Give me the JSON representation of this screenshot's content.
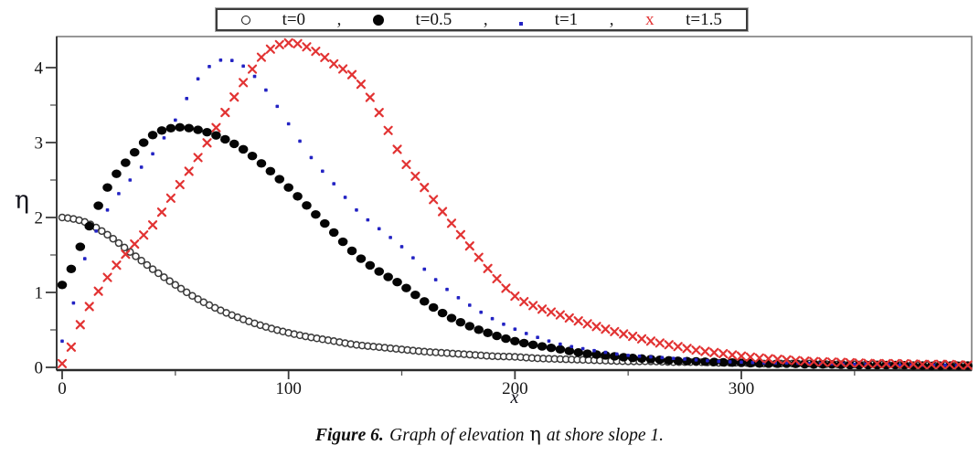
{
  "figure": {
    "caption": {
      "prefix": "Figure 6.",
      "body": "Graph of elevation",
      "eta": "η",
      "suffix": "at shore slope 1."
    }
  },
  "legend": {
    "separator": ",",
    "items": [
      {
        "label": "t=0",
        "marker": "open-circle",
        "glyph": "o",
        "color": "#141414"
      },
      {
        "label": "t=0.5",
        "marker": "filled-circle",
        "glyph": "●",
        "color": "#050505"
      },
      {
        "label": "t=1",
        "marker": "dot",
        "glyph": ".",
        "color": "#2323c3"
      },
      {
        "label": "t=1.5",
        "marker": "x-cross",
        "glyph": "x",
        "color": "#e23333"
      }
    ]
  },
  "axes": {
    "x": {
      "label": "x",
      "major_ticks": [
        0,
        100,
        200,
        300
      ],
      "minor_ticks": [
        50,
        150,
        250,
        350
      ],
      "range": [
        -2.5,
        401.5
      ]
    },
    "y": {
      "label": "η",
      "major_ticks": [
        0,
        1,
        2,
        3,
        4
      ],
      "minor_ticks": [
        0.5,
        1.5,
        2.5,
        3.5
      ],
      "range": [
        -0.04,
        4.42
      ]
    }
  },
  "layout_colors": {
    "background": "#ffffff",
    "frame": "#757575",
    "axis": "#2a2a2a",
    "tick": "#3c3c3c",
    "series_gray": "#3a3a3a",
    "series_black": "#050505",
    "series_blue": "#2323c3",
    "series_red": "#e23333"
  },
  "chart_data": {
    "type": "scatter",
    "title": "",
    "xlabel": "x",
    "ylabel": "η",
    "xlim": [
      0,
      400
    ],
    "ylim": [
      0,
      4.42
    ],
    "grid": false,
    "legend_position": "top-outside",
    "x": [
      0,
      10,
      20,
      30,
      40,
      50,
      60,
      70,
      80,
      90,
      100,
      110,
      120,
      130,
      140,
      150,
      160,
      170,
      180,
      190,
      200,
      210,
      220,
      230,
      240,
      250,
      260,
      270,
      280,
      290,
      300,
      310,
      320,
      330,
      340,
      350,
      360,
      370,
      380,
      390,
      400
    ],
    "series": [
      {
        "name": "t=0",
        "marker": "open-circle",
        "color": "#3a3a3a",
        "fill": "#ffffff",
        "marker_step": 2.5,
        "values": [
          2.0,
          1.94,
          1.77,
          1.54,
          1.31,
          1.1,
          0.91,
          0.76,
          0.64,
          0.54,
          0.46,
          0.4,
          0.35,
          0.3,
          0.27,
          0.24,
          0.21,
          0.19,
          0.17,
          0.15,
          0.14,
          0.12,
          0.11,
          0.1,
          0.09,
          0.08,
          0.08,
          0.07,
          0.07,
          0.06,
          0.06,
          0.05,
          0.05,
          0.05,
          0.04,
          0.04,
          0.04,
          0.03,
          0.03,
          0.03,
          0.03
        ]
      },
      {
        "name": "t=0.5",
        "marker": "filled-circle",
        "color": "#050505",
        "fill": "#050505",
        "marker_step": 4,
        "values": [
          1.1,
          1.75,
          2.4,
          2.8,
          3.1,
          3.2,
          3.17,
          3.07,
          2.91,
          2.67,
          2.4,
          2.1,
          1.8,
          1.5,
          1.28,
          1.1,
          0.88,
          0.69,
          0.55,
          0.44,
          0.35,
          0.29,
          0.24,
          0.19,
          0.16,
          0.13,
          0.11,
          0.09,
          0.08,
          0.07,
          0.06,
          0.05,
          0.05,
          0.04,
          0.04,
          0.03,
          0.03,
          0.03,
          0.02,
          0.02,
          0.02
        ]
      },
      {
        "name": "t=1",
        "marker": "dot",
        "color": "#2323c3",
        "fill": "#2323c3",
        "marker_step": 5,
        "values": [
          0.35,
          1.45,
          2.1,
          2.5,
          2.85,
          3.3,
          3.85,
          4.1,
          4.02,
          3.7,
          3.25,
          2.8,
          2.45,
          2.1,
          1.85,
          1.61,
          1.31,
          1.04,
          0.83,
          0.65,
          0.51,
          0.4,
          0.31,
          0.25,
          0.2,
          0.16,
          0.14,
          0.12,
          0.1,
          0.08,
          0.07,
          0.06,
          0.06,
          0.05,
          0.05,
          0.04,
          0.04,
          0.03,
          0.03,
          0.03,
          0.02
        ]
      },
      {
        "name": "t=1.5",
        "marker": "x-cross",
        "color": "#e23333",
        "fill": "#e23333",
        "marker_step": 4,
        "values": [
          0.05,
          0.7,
          1.2,
          1.58,
          1.9,
          2.35,
          2.8,
          3.3,
          3.8,
          4.2,
          4.33,
          4.25,
          4.05,
          3.85,
          3.4,
          2.8,
          2.4,
          2.0,
          1.62,
          1.25,
          0.95,
          0.8,
          0.7,
          0.6,
          0.51,
          0.43,
          0.35,
          0.29,
          0.23,
          0.19,
          0.15,
          0.12,
          0.1,
          0.08,
          0.07,
          0.06,
          0.05,
          0.05,
          0.04,
          0.04,
          0.03
        ]
      }
    ]
  }
}
